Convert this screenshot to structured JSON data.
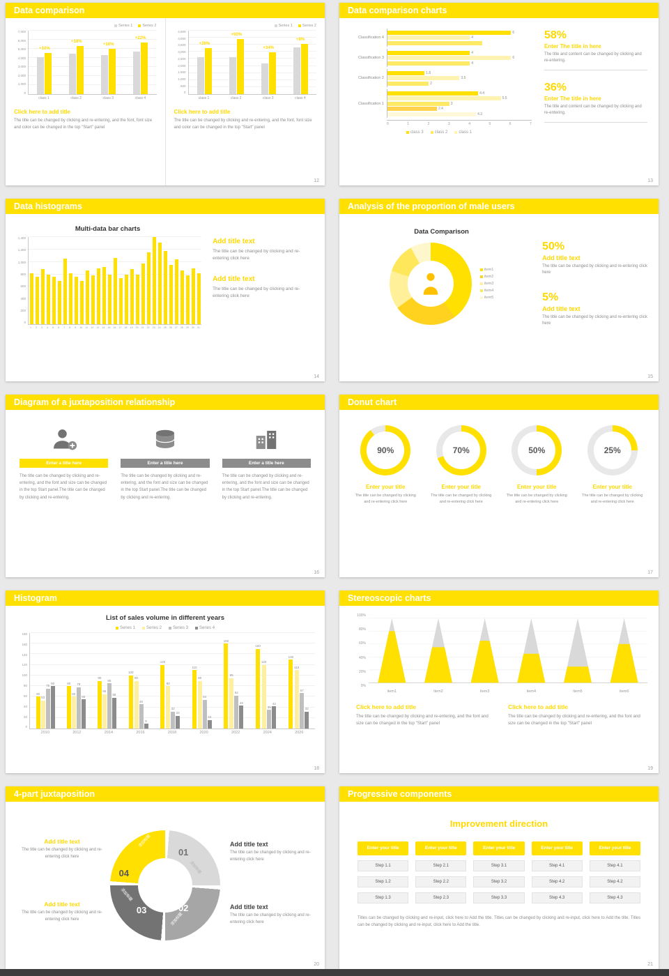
{
  "page": {
    "background": "#e9e9e9",
    "accent": "#ffe000",
    "bottom_bar_color": "#3d3d3d"
  },
  "slides": {
    "s12": {
      "title": "Data comparison",
      "page": "12",
      "legend": [
        {
          "label": "Series 1",
          "color": "#d9d9d9"
        },
        {
          "label": "Series 2",
          "color": "#ffe000"
        }
      ],
      "left_chart": {
        "type": "bar",
        "yticks": [
          "7,000",
          "6,000",
          "5,000",
          "4,000",
          "3,000",
          "2,000",
          "1,000",
          "0"
        ],
        "ymax": 7000,
        "categories": [
          "class 1",
          "class 2",
          "class 3",
          "class 4"
        ],
        "series": [
          {
            "name": "Series 1",
            "color": "#d9d9d9",
            "values": [
              4100,
              4500,
              4300,
              4700
            ]
          },
          {
            "name": "Series 2",
            "color": "#ffe000",
            "values": [
              4510,
              5310,
              4990,
              5730
            ]
          }
        ],
        "group_labels": [
          "+10%",
          "+18%",
          "+16%",
          "+22%"
        ]
      },
      "right_chart": {
        "type": "bar",
        "yticks": [
          "4,500",
          "4,000",
          "3,500",
          "3,000",
          "2,500",
          "2,000",
          "1,500",
          "1,000",
          "500",
          "0"
        ],
        "ymax": 4500,
        "categories": [
          "class 1",
          "class 2",
          "class 3",
          "class 4"
        ],
        "series": [
          {
            "name": "Series 1",
            "color": "#d9d9d9",
            "values": [
              2600,
              2600,
              2200,
              3300
            ]
          },
          {
            "name": "Series 2",
            "color": "#ffe000",
            "values": [
              3280,
              3900,
              2950,
              3560
            ]
          }
        ],
        "group_labels": [
          "+26%",
          "+50%",
          "+34%",
          "+8%"
        ]
      },
      "left_caption_title": "Click here to add title",
      "left_caption_body": "The title can be changed by clicking and re-entering, and the font, font size and color can be changed in the top \"Start\" panel",
      "right_caption_title": "Click here to add title",
      "right_caption_body": "The title can be changed by clicking and re-entering, and the font, font size and color can be changed in the top \"Start\" panel"
    },
    "s13": {
      "title": "Data comparison charts",
      "page": "13",
      "chart": {
        "type": "bar-horizontal",
        "xticks": [
          "0",
          "1",
          "2",
          "3",
          "4",
          "5",
          "6",
          "7"
        ],
        "xmax": 7,
        "groups": [
          {
            "label": "Classification 4",
            "bars": [
              {
                "value": 6,
                "text": "6",
                "color": "#ffe000"
              },
              {
                "value": 4,
                "text": "4",
                "color": "#fff3b2"
              },
              {
                "value": 4.6,
                "text": "",
                "color": "#ffea66"
              }
            ]
          },
          {
            "label": "Classification 3",
            "bars": [
              {
                "value": 4,
                "text": "4",
                "color": "#ffe000"
              },
              {
                "value": 6,
                "text": "6",
                "color": "#fff3b2"
              },
              {
                "value": 4,
                "text": "4",
                "color": "#ffea66"
              }
            ]
          },
          {
            "label": "Classification 2",
            "bars": [
              {
                "value": 1.8,
                "text": "1.8",
                "color": "#ffe000"
              },
              {
                "value": 3.5,
                "text": "3.5",
                "color": "#fff3b2"
              },
              {
                "value": 2,
                "text": "2",
                "color": "#ffea66"
              }
            ]
          },
          {
            "label": "Classification 1",
            "bars": [
              {
                "value": 4.4,
                "text": "4.4",
                "color": "#ffe000"
              },
              {
                "value": 5.5,
                "text": "5.5",
                "color": "#fff3b2"
              },
              {
                "value": 3,
                "text": "3",
                "color": "#ffea66"
              },
              {
                "value": 2.4,
                "text": "2.4",
                "color": "#ffd24d"
              },
              {
                "value": 4.3,
                "text": "4.3",
                "color": "#fff8d9"
              }
            ]
          }
        ],
        "legend": [
          {
            "label": "class 3",
            "color": "#ffe000"
          },
          {
            "label": "class 2",
            "color": "#ffea66"
          },
          {
            "label": "class 1",
            "color": "#fff3b2"
          }
        ]
      },
      "stat1_value": "58%",
      "stat1_title": "Enter The title in here",
      "stat1_body": "The title and content can be changed by clicking and re-entering.",
      "stat2_value": "36%",
      "stat2_title": "Enter The title in here",
      "stat2_body": "The title and content can be changed by clicking and re-entering."
    },
    "s14": {
      "title": "Data histograms",
      "page": "14",
      "chart": {
        "type": "bar",
        "title": "Multi-data bar charts",
        "yticks": [
          "1,400",
          "1,200",
          "1,000",
          "800",
          "600",
          "400",
          "200",
          "0"
        ],
        "ymax": 1400,
        "categories": [
          "1",
          "2",
          "3",
          "4",
          "5",
          "6",
          "7",
          "8",
          "9",
          "10",
          "11",
          "12",
          "13",
          "14",
          "15",
          "16",
          "17",
          "18",
          "19",
          "20",
          "21",
          "22",
          "23",
          "24",
          "25",
          "26",
          "27",
          "28",
          "29",
          "30",
          "31"
        ],
        "series": [
          {
            "name": "data",
            "color": "#ffe000",
            "values": [
              820,
              760,
              880,
              800,
              760,
              700,
              1050,
              820,
              760,
              700,
              860,
              780,
              900,
              920,
              800,
              1060,
              740,
              800,
              880,
              800,
              980,
              1150,
              1400,
              1310,
              1180,
              950,
              1040,
              860,
              780,
              900,
              820
            ]
          }
        ]
      },
      "block1_title": "Add title text",
      "block1_body": "The title can be changed by clicking and re-entering click here",
      "block2_title": "Add title text",
      "block2_body": "The title can be changed by clicking and re-entering click here"
    },
    "s15": {
      "title": "Analysis of the proportion of male users",
      "page": "15",
      "chart_title": "Data Comparison",
      "chart": {
        "type": "pie",
        "center_icon": "male-person-icon",
        "segments": [
          {
            "label": "item1",
            "value": 40,
            "color": "#ffe000"
          },
          {
            "label": "item2",
            "value": 25,
            "color": "#ffd21f"
          },
          {
            "label": "item3",
            "value": 15,
            "color": "#fff099"
          },
          {
            "label": "item4",
            "value": 12,
            "color": "#ffe75c"
          },
          {
            "label": "item5",
            "value": 8,
            "color": "#fff7cc"
          }
        ]
      },
      "stat1_value": "50%",
      "stat1_title": "Add title text",
      "stat1_body": "The title can be changed by clicking and re-entering click here",
      "stat2_value": "5%",
      "stat2_title": "Add title text",
      "stat2_body": "The title can be changed by clicking and re-entering click here"
    },
    "s16": {
      "title": "Diagram of a juxtaposition relationship",
      "page": "16",
      "items": [
        {
          "icon": "person-icon",
          "bar_color": "#ffe000",
          "heading": "Enter a title here",
          "body": "The title can be changed by clicking and re-entering, and the font and size can be changed in the top Start panel.The title can be changed by clicking and re-entering."
        },
        {
          "icon": "database-icon",
          "bar_color": "#8c8c8c",
          "heading": "Enter a title here",
          "body": "The title can be changed by clicking and re-entering, and the font and size can be changed in the top Start panel.The title can be changed by clicking and re-entering."
        },
        {
          "icon": "building-icon",
          "bar_color": "#8c8c8c",
          "heading": "Enter a title here",
          "body": "The title can be changed by clicking and re-entering, and the font and size can be changed in the top Start panel.The title can be changed by clicking and re-entering."
        }
      ]
    },
    "s17": {
      "title": "Donut chart",
      "page": "17",
      "donuts": [
        {
          "percent": 90,
          "label": "90%",
          "heading": "Enter your title",
          "body": "The title can be changed by clicking and re-entering click here"
        },
        {
          "percent": 70,
          "label": "70%",
          "heading": "Enter your title",
          "body": "The title can be changed by clicking and re-entering click here"
        },
        {
          "percent": 50,
          "label": "50%",
          "heading": "Enter your title",
          "body": "The title can be changed by clicking and re-entering click here"
        },
        {
          "percent": 25,
          "label": "25%",
          "heading": "Enter your title",
          "body": "The title can be changed by clicking and re-entering click here"
        }
      ]
    },
    "s18": {
      "title": "Histogram",
      "page": "18",
      "chart": {
        "type": "bar",
        "title": "List of sales volume in different years",
        "yticks": [
          "180",
          "160",
          "140",
          "120",
          "100",
          "80",
          "60",
          "40",
          "20",
          "0"
        ],
        "ymax": 180,
        "categories": [
          "2010",
          "2012",
          "2014",
          "2016",
          "2018",
          "2020",
          "2022",
          "2024",
          "2026"
        ],
        "series": [
          {
            "name": "Series 1",
            "color": "#ffe000",
            "values": [
              60,
              80,
              90,
              100,
              120,
              110,
              160,
              150,
              130
            ]
          },
          {
            "name": "Series 2",
            "color": "#fff0a0",
            "values": [
              53,
              60,
              65,
              90,
              80,
              90,
              95,
              120,
              110
            ]
          },
          {
            "name": "Series 3",
            "color": "#bfbfbf",
            "values": [
              75,
              78,
              85,
              46,
              32,
              54,
              62,
              35,
              67
            ]
          },
          {
            "name": "Series 4",
            "color": "#8c8c8c",
            "values": [
              80,
              55,
              58,
              9,
              24,
              16,
              43,
              42,
              32
            ]
          }
        ]
      },
      "legend": [
        {
          "label": "Series 1",
          "color": "#ffe000"
        },
        {
          "label": "Series 2",
          "color": "#fff0a0"
        },
        {
          "label": "Series 3",
          "color": "#bfbfbf"
        },
        {
          "label": "Series 4",
          "color": "#8c8c8c"
        }
      ]
    },
    "s19": {
      "title": "Stereoscopic charts",
      "page": "19",
      "chart": {
        "type": "cone",
        "yticks": [
          "100%",
          "80%",
          "60%",
          "40%",
          "20%",
          "0%"
        ],
        "cone_color": "#d9d9d9",
        "fill_color": "#ffe000",
        "cones": [
          {
            "label": "item1",
            "fill_percent": 80
          },
          {
            "label": "item2",
            "fill_percent": 55
          },
          {
            "label": "item3",
            "fill_percent": 65
          },
          {
            "label": "item4",
            "fill_percent": 45
          },
          {
            "label": "item5",
            "fill_percent": 25
          },
          {
            "label": "item6",
            "fill_percent": 60
          }
        ]
      },
      "caption1_title": "Click here to add title",
      "caption1_body": "The title can be changed by clicking and re-entering, and the font and size can be changed in the top \"Start\" panel",
      "caption2_title": "Click here to add title",
      "caption2_body": "The title can be changed by clicking and re-entering, and the font and size can be changed in the top \"Start\" panel"
    },
    "s20": {
      "title": "4-part juxtaposition",
      "page": "20",
      "segment_gap": 1.2,
      "segments": [
        {
          "num": "01",
          "label": "添加标题",
          "color": "#d9d9d9"
        },
        {
          "num": "02",
          "label": "添加标题",
          "color": "#a6a6a6"
        },
        {
          "num": "03",
          "label": "添加标题",
          "color": "#737373"
        },
        {
          "num": "04",
          "label": "添加标题",
          "color": "#ffe000"
        }
      ],
      "left_blocks": [
        {
          "heading": "Add title text",
          "body": "The title can be changed by clicking and re-entering click here"
        },
        {
          "heading": "Add title text",
          "body": "The title can be changed by clicking and re-entering click here"
        }
      ],
      "right_blocks": [
        {
          "heading": "Add title text",
          "body": "The title can be changed by clicking and re-entering click here"
        },
        {
          "heading": "Add title text",
          "body": "The title can be changed by clicking and re-entering click here"
        }
      ]
    },
    "s21": {
      "title": "Progressive components",
      "page": "21",
      "heading": "Improvement direction",
      "columns": [
        {
          "header": "Enter your title",
          "steps": [
            "Step 1.1",
            "Step 1.2",
            "Step 1.3"
          ]
        },
        {
          "header": "Enter your title",
          "steps": [
            "Step 2.1",
            "Step 2.2",
            "Step 2.3"
          ]
        },
        {
          "header": "Enter your title",
          "steps": [
            "Step 3.1",
            "Step 3.2",
            "Step 3.3"
          ]
        },
        {
          "header": "Enter your title",
          "steps": [
            "Step 4.1",
            "Step 4.2",
            "Step 4.3"
          ]
        },
        {
          "header": "Enter your title",
          "steps": [
            "Step 4.1",
            "Step 4.2",
            "Step 4.3"
          ]
        }
      ],
      "caption": "Titles can be changed by clicking and re-input, click here to Add the title. Titles can be changed by clicking and re-input, click here to Add the title. Titles can be changed by clicking and re-input, click here to Add the title."
    }
  }
}
